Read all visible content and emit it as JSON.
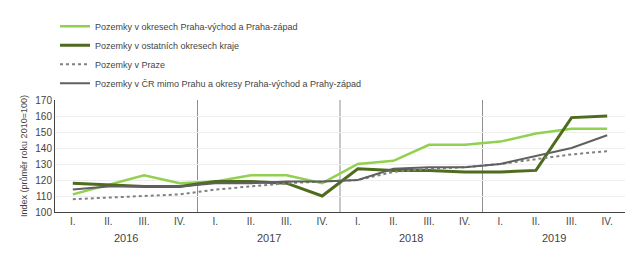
{
  "chart_data": {
    "type": "line",
    "ylabel": "Index (průměr roku 2010=100)",
    "categories": [
      "I.",
      "II.",
      "III.",
      "IV.",
      "I.",
      "II.",
      "III.",
      "IV.",
      "I.",
      "II.",
      "III.",
      "IV.",
      "I.",
      "II.",
      "III.",
      "IV."
    ],
    "annotations": [
      "2016",
      "2017",
      "2018",
      "2019"
    ],
    "ylim": [
      100,
      170
    ],
    "yticks": [
      100,
      110,
      120,
      130,
      140,
      150,
      160,
      170
    ],
    "grid": true,
    "legend": "upper left",
    "series": [
      {
        "name": "Pozemky v okresech Praha-východ a Praha-západ",
        "color": "#92d050",
        "line_style": "solid",
        "values": [
          111,
          117,
          123,
          118,
          119,
          123,
          123,
          118,
          130,
          132,
          142,
          142,
          144,
          149,
          152,
          152
        ]
      },
      {
        "name": "Pozemky v ostatních okresech kraje",
        "color": "#4e6b1e",
        "line_style": "solid",
        "values": [
          118,
          117,
          116,
          116,
          119,
          119,
          118,
          110,
          127,
          126,
          126,
          125,
          125,
          126,
          159,
          160
        ]
      },
      {
        "name": "Pozemky v Praze",
        "color": "#808080",
        "line_style": "dotted",
        "values": [
          108,
          109,
          110,
          111,
          114,
          116,
          118,
          119,
          120,
          125,
          127,
          128,
          130,
          133,
          136,
          138
        ]
      },
      {
        "name": "Pozemky v ČR mimo Prahu a okresy Praha-východ a Prahy-západ",
        "color": "#606060",
        "line_style": "solid",
        "values": [
          114,
          116,
          116,
          116,
          118,
          118,
          119,
          119,
          120,
          127,
          128,
          128,
          130,
          135,
          140,
          148
        ]
      }
    ]
  }
}
